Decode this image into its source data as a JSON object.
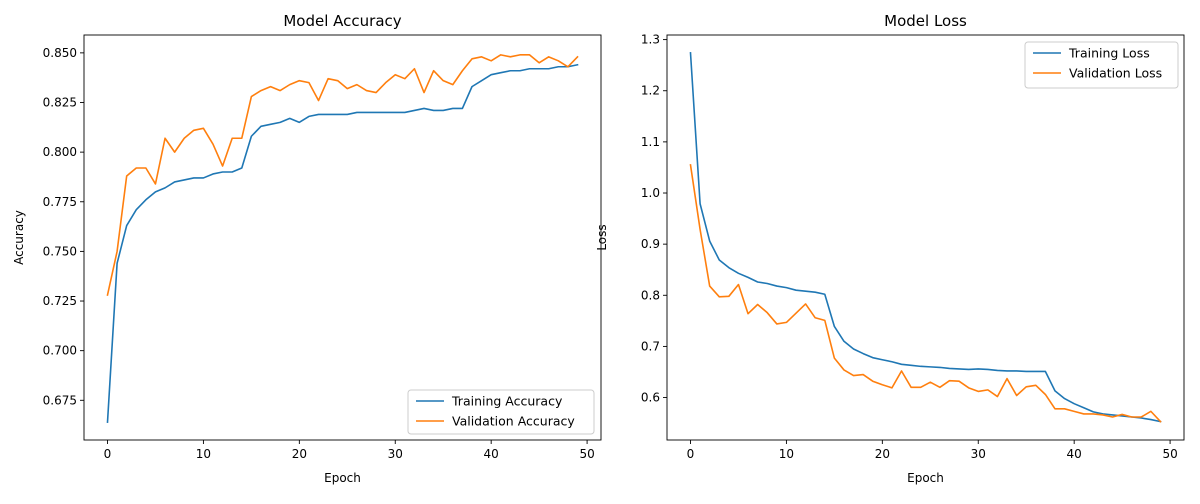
{
  "colors": {
    "training": "#1f77b4",
    "validation": "#ff7f0e"
  },
  "chart_data": [
    {
      "type": "line",
      "title": "Model Accuracy",
      "xlabel": "Epoch",
      "ylabel": "Accuracy",
      "xlim": [
        -2.45,
        51.45
      ],
      "ylim": [
        0.655,
        0.859
      ],
      "xticks": [
        0,
        10,
        20,
        30,
        40,
        50
      ],
      "yticks": [
        0.675,
        0.7,
        0.725,
        0.75,
        0.775,
        0.8,
        0.825,
        0.85
      ],
      "ytick_labels": [
        "0.675",
        "0.700",
        "0.725",
        "0.750",
        "0.775",
        "0.800",
        "0.825",
        "0.850"
      ],
      "grid": false,
      "legend": "lower-right",
      "x": [
        0,
        1,
        2,
        3,
        4,
        5,
        6,
        7,
        8,
        9,
        10,
        11,
        12,
        13,
        14,
        15,
        16,
        17,
        18,
        19,
        20,
        21,
        22,
        23,
        24,
        25,
        26,
        27,
        28,
        29,
        30,
        31,
        32,
        33,
        34,
        35,
        36,
        37,
        38,
        39,
        40,
        41,
        42,
        43,
        44,
        45,
        46,
        47,
        48,
        49
      ],
      "series": [
        {
          "name": "Training Accuracy",
          "color": "#1f77b4",
          "values": [
            0.664,
            0.744,
            0.763,
            0.771,
            0.776,
            0.78,
            0.782,
            0.785,
            0.786,
            0.787,
            0.787,
            0.789,
            0.79,
            0.79,
            0.792,
            0.808,
            0.813,
            0.814,
            0.815,
            0.817,
            0.815,
            0.818,
            0.819,
            0.819,
            0.819,
            0.819,
            0.82,
            0.82,
            0.82,
            0.82,
            0.82,
            0.82,
            0.821,
            0.822,
            0.821,
            0.821,
            0.822,
            0.822,
            0.833,
            0.836,
            0.839,
            0.84,
            0.841,
            0.841,
            0.842,
            0.842,
            0.842,
            0.843,
            0.843,
            0.844
          ]
        },
        {
          "name": "Validation Accuracy",
          "color": "#ff7f0e",
          "values": [
            0.728,
            0.75,
            0.788,
            0.792,
            0.792,
            0.784,
            0.807,
            0.8,
            0.807,
            0.811,
            0.812,
            0.804,
            0.793,
            0.807,
            0.807,
            0.828,
            0.831,
            0.833,
            0.831,
            0.834,
            0.836,
            0.835,
            0.826,
            0.837,
            0.836,
            0.832,
            0.834,
            0.831,
            0.83,
            0.835,
            0.839,
            0.837,
            0.842,
            0.83,
            0.841,
            0.836,
            0.834,
            0.841,
            0.847,
            0.848,
            0.846,
            0.849,
            0.848,
            0.849,
            0.849,
            0.845,
            0.848,
            0.846,
            0.843,
            0.848
          ]
        }
      ]
    },
    {
      "type": "line",
      "title": "Model Loss",
      "xlabel": "Epoch",
      "ylabel": "Loss",
      "xlim": [
        -2.45,
        51.45
      ],
      "ylim": [
        0.517,
        1.309
      ],
      "xticks": [
        0,
        10,
        20,
        30,
        40,
        50
      ],
      "yticks": [
        0.6,
        0.7,
        0.8,
        0.9,
        1.0,
        1.1,
        1.2,
        1.3
      ],
      "ytick_labels": [
        "0.6",
        "0.7",
        "0.8",
        "0.9",
        "1.0",
        "1.1",
        "1.2",
        "1.3"
      ],
      "grid": false,
      "legend": "upper-right",
      "x": [
        0,
        1,
        2,
        3,
        4,
        5,
        6,
        7,
        8,
        9,
        10,
        11,
        12,
        13,
        14,
        15,
        16,
        17,
        18,
        19,
        20,
        21,
        22,
        23,
        24,
        25,
        26,
        27,
        28,
        29,
        30,
        31,
        32,
        33,
        34,
        35,
        36,
        37,
        38,
        39,
        40,
        41,
        42,
        43,
        44,
        45,
        46,
        47,
        48,
        49
      ],
      "series": [
        {
          "name": "Training Loss",
          "color": "#1f77b4",
          "values": [
            1.274,
            0.979,
            0.906,
            0.869,
            0.854,
            0.843,
            0.835,
            0.826,
            0.823,
            0.818,
            0.815,
            0.81,
            0.808,
            0.806,
            0.802,
            0.739,
            0.71,
            0.695,
            0.686,
            0.678,
            0.674,
            0.67,
            0.665,
            0.663,
            0.661,
            0.66,
            0.659,
            0.657,
            0.656,
            0.655,
            0.656,
            0.655,
            0.653,
            0.652,
            0.652,
            0.651,
            0.651,
            0.651,
            0.613,
            0.598,
            0.588,
            0.58,
            0.572,
            0.568,
            0.566,
            0.564,
            0.562,
            0.56,
            0.557,
            0.553
          ]
        },
        {
          "name": "Validation Loss",
          "color": "#ff7f0e",
          "values": [
            1.055,
            0.929,
            0.818,
            0.797,
            0.798,
            0.821,
            0.764,
            0.782,
            0.766,
            0.744,
            0.747,
            0.765,
            0.783,
            0.756,
            0.751,
            0.677,
            0.654,
            0.643,
            0.645,
            0.632,
            0.625,
            0.619,
            0.652,
            0.62,
            0.62,
            0.63,
            0.62,
            0.633,
            0.632,
            0.619,
            0.612,
            0.615,
            0.602,
            0.637,
            0.604,
            0.621,
            0.624,
            0.606,
            0.578,
            0.578,
            0.573,
            0.568,
            0.568,
            0.566,
            0.562,
            0.567,
            0.562,
            0.562,
            0.573,
            0.553
          ]
        }
      ]
    }
  ]
}
